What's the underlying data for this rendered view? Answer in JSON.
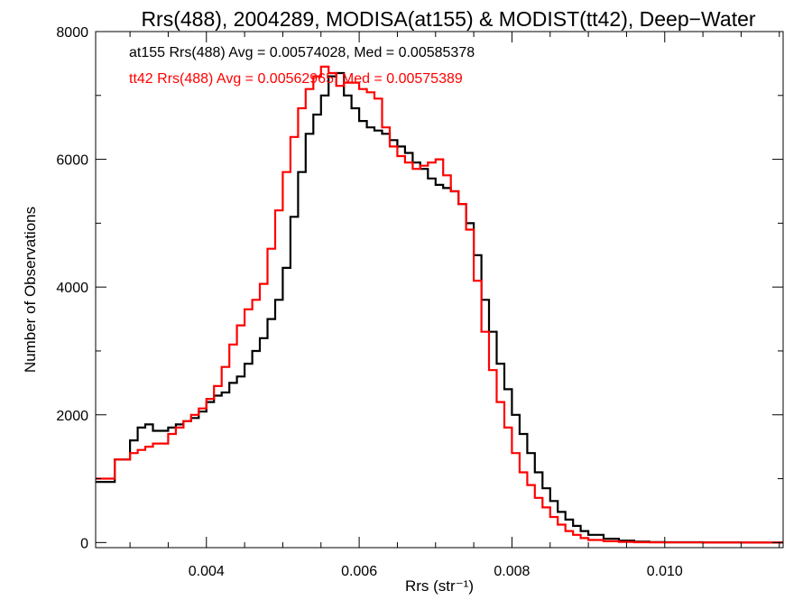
{
  "chart_data": {
    "type": "line",
    "title": "Rrs(488), 2004289, MODISA(at155) & MODIST(tt42), Deep−Water",
    "xlabel": "Rrs (str⁻¹)",
    "ylabel": "Number of Observations",
    "xlim": [
      0.00255,
      0.01155
    ],
    "ylim": [
      -80,
      8000
    ],
    "x_ticks": [
      0.004,
      0.006,
      0.008,
      0.01
    ],
    "x_tick_labels": [
      "0.004",
      "0.006",
      "0.008",
      "0.010"
    ],
    "y_ticks": [
      0,
      2000,
      4000,
      6000,
      8000
    ],
    "y_tick_labels": [
      "0",
      "2000",
      "4000",
      "6000",
      "8000"
    ],
    "grid": false,
    "annotations": [
      {
        "text": "at155 Rrs(488) Avg = 0.00574028, Med = 0.00585378",
        "color": "#000000"
      },
      {
        "text": "tt42 Rrs(488) Avg = 0.00562965, Med = 0.00575389",
        "color": "#ff0000"
      }
    ],
    "series": [
      {
        "color": "#000000",
        "x": [
          0.00255,
          0.0028,
          0.003,
          0.0031,
          0.0032,
          0.0033,
          0.0035,
          0.0036,
          0.0037,
          0.0038,
          0.0039,
          0.004,
          0.0041,
          0.0042,
          0.0043,
          0.0044,
          0.0045,
          0.0046,
          0.0047,
          0.0048,
          0.0049,
          0.005,
          0.0051,
          0.0052,
          0.0053,
          0.0054,
          0.0055,
          0.0056,
          0.0057,
          0.0058,
          0.0059,
          0.006,
          0.0061,
          0.0062,
          0.0063,
          0.0064,
          0.0065,
          0.0066,
          0.0067,
          0.0068,
          0.0069,
          0.007,
          0.0071,
          0.0072,
          0.0073,
          0.0074,
          0.0075,
          0.0076,
          0.0077,
          0.0078,
          0.0079,
          0.008,
          0.0081,
          0.0082,
          0.0083,
          0.0084,
          0.0085,
          0.0086,
          0.0087,
          0.0088,
          0.0089,
          0.009,
          0.0092,
          0.0094,
          0.0096,
          0.0098,
          0.01,
          0.0105,
          0.011,
          0.01155
        ],
        "y": [
          950,
          1300,
          1600,
          1800,
          1850,
          1750,
          1800,
          1850,
          1900,
          1950,
          2050,
          2200,
          2300,
          2350,
          2500,
          2600,
          2800,
          3000,
          3200,
          3500,
          3800,
          4300,
          5100,
          5800,
          6400,
          6700,
          7000,
          7300,
          7350,
          7000,
          6800,
          6600,
          6500,
          6450,
          6400,
          6300,
          6200,
          6100,
          5950,
          5850,
          5700,
          5600,
          5550,
          5500,
          5300,
          5000,
          4500,
          3800,
          3300,
          2800,
          2400,
          2000,
          1700,
          1400,
          1100,
          850,
          650,
          480,
          360,
          260,
          180,
          120,
          60,
          30,
          15,
          8,
          5,
          2,
          1,
          0
        ]
      },
      {
        "color": "#ff0000",
        "x": [
          0.00255,
          0.0028,
          0.003,
          0.0031,
          0.0032,
          0.0033,
          0.0035,
          0.0036,
          0.0037,
          0.0038,
          0.0039,
          0.004,
          0.0041,
          0.0042,
          0.0043,
          0.0044,
          0.0045,
          0.0046,
          0.0047,
          0.0048,
          0.0049,
          0.005,
          0.0051,
          0.0052,
          0.0053,
          0.0054,
          0.0055,
          0.0056,
          0.0057,
          0.0058,
          0.0059,
          0.006,
          0.0061,
          0.0062,
          0.0063,
          0.0064,
          0.0065,
          0.0066,
          0.0067,
          0.0068,
          0.0069,
          0.007,
          0.0071,
          0.0072,
          0.0073,
          0.0074,
          0.0075,
          0.0076,
          0.0077,
          0.0078,
          0.0079,
          0.008,
          0.0081,
          0.0082,
          0.0083,
          0.0084,
          0.0085,
          0.0086,
          0.0087,
          0.0088,
          0.0089,
          0.009,
          0.0092,
          0.0094,
          0.0096,
          0.0098,
          0.01,
          0.0105,
          0.011,
          0.01155
        ],
        "y": [
          1000,
          1300,
          1400,
          1450,
          1500,
          1550,
          1700,
          1800,
          1900,
          2000,
          2100,
          2250,
          2450,
          2750,
          3100,
          3400,
          3650,
          3800,
          4050,
          4600,
          5200,
          5800,
          6350,
          6800,
          7100,
          7300,
          7450,
          7350,
          7150,
          7200,
          7200,
          7100,
          7050,
          6950,
          6500,
          6200,
          6050,
          5950,
          5850,
          5900,
          5950,
          6000,
          5750,
          5500,
          5300,
          4900,
          4100,
          3300,
          2700,
          2200,
          1800,
          1400,
          1100,
          900,
          700,
          550,
          400,
          280,
          180,
          120,
          70,
          40,
          20,
          10,
          5,
          3,
          2,
          1,
          0,
          0
        ]
      }
    ]
  }
}
